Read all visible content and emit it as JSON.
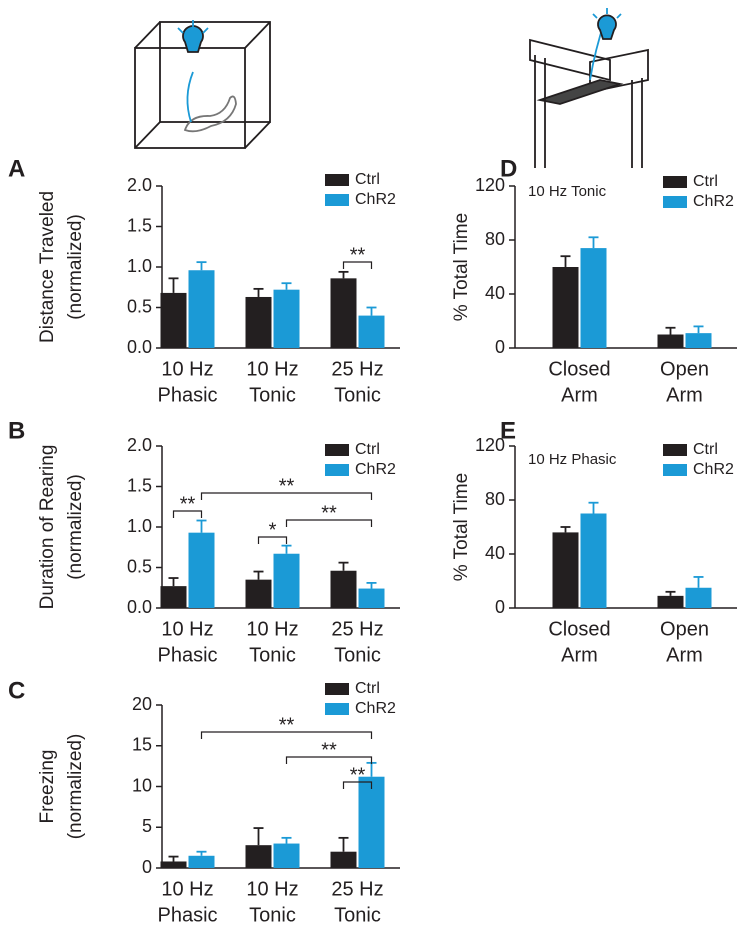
{
  "chart_data": [
    {
      "type": "bar",
      "panel": "A",
      "ylabel": [
        "Distance Traveled",
        "(normalized)"
      ],
      "categories": [
        [
          "10 Hz",
          "Phasic"
        ],
        [
          "10 Hz",
          "Tonic"
        ],
        [
          "25 Hz",
          "Tonic"
        ]
      ],
      "series": [
        {
          "name": "Ctrl",
          "color": "#231f20",
          "values": [
            0.68,
            0.63,
            0.86
          ],
          "errors": [
            0.18,
            0.1,
            0.08
          ]
        },
        {
          "name": "ChR2",
          "color": "#1b9ad6",
          "values": [
            0.96,
            0.72,
            0.4
          ],
          "errors": [
            0.1,
            0.08,
            0.1
          ]
        }
      ],
      "ylim": [
        0,
        2
      ],
      "yticks": [
        {
          "value": 0,
          "label": "0.0"
        },
        {
          "value": 0.5,
          "label": "0.5"
        },
        {
          "value": 1,
          "label": "1.0"
        },
        {
          "value": 1.5,
          "label": "1.5"
        },
        {
          "value": 2,
          "label": "2.0"
        }
      ],
      "significance": [
        "**"
      ]
    },
    {
      "type": "bar",
      "panel": "B",
      "ylabel": [
        "Duration of Rearing",
        "(normalized)"
      ],
      "categories": [
        [
          "10 Hz",
          "Phasic"
        ],
        [
          "10 Hz",
          "Tonic"
        ],
        [
          "25 Hz",
          "Tonic"
        ]
      ],
      "series": [
        {
          "name": "Ctrl",
          "color": "#231f20",
          "values": [
            0.27,
            0.35,
            0.46
          ],
          "errors": [
            0.1,
            0.1,
            0.1
          ]
        },
        {
          "name": "ChR2",
          "color": "#1b9ad6",
          "values": [
            0.93,
            0.67,
            0.24
          ],
          "errors": [
            0.15,
            0.1,
            0.07
          ]
        }
      ],
      "ylim": [
        0,
        2
      ],
      "yticks": [
        {
          "value": 0,
          "label": "0.0"
        },
        {
          "value": 0.5,
          "label": "0.5"
        },
        {
          "value": 1,
          "label": "1.0"
        },
        {
          "value": 1.5,
          "label": "1.5"
        },
        {
          "value": 2,
          "label": "2.0"
        }
      ],
      "significance": [
        "**",
        "**",
        "*",
        "**"
      ]
    },
    {
      "type": "bar",
      "panel": "C",
      "ylabel": [
        "Freezing",
        "(normalized)"
      ],
      "categories": [
        [
          "10 Hz",
          "Phasic"
        ],
        [
          "10 Hz",
          "Tonic"
        ],
        [
          "25 Hz",
          "Tonic"
        ]
      ],
      "series": [
        {
          "name": "Ctrl",
          "color": "#231f20",
          "values": [
            0.8,
            2.8,
            2.0
          ],
          "errors": [
            0.6,
            2.1,
            1.7
          ]
        },
        {
          "name": "ChR2",
          "color": "#1b9ad6",
          "values": [
            1.5,
            3.0,
            11.2
          ],
          "errors": [
            0.5,
            0.7,
            1.7
          ]
        }
      ],
      "ylim": [
        0,
        20
      ],
      "yticks": [
        0,
        5,
        10,
        15,
        20
      ],
      "significance": [
        "**",
        "**",
        "**"
      ]
    },
    {
      "type": "bar",
      "panel": "D",
      "ylabel": [
        "% Total Time"
      ],
      "annotation": "10 Hz Tonic",
      "categories": [
        [
          "Closed",
          "Arm"
        ],
        [
          "Open",
          "Arm"
        ]
      ],
      "series": [
        {
          "name": "Ctrl",
          "color": "#231f20",
          "values": [
            60,
            10
          ],
          "errors": [
            8,
            5
          ]
        },
        {
          "name": "ChR2",
          "color": "#1b9ad6",
          "values": [
            74,
            11
          ],
          "errors": [
            8,
            5
          ]
        }
      ],
      "ylim": [
        0,
        120
      ],
      "yticks": [
        0,
        40,
        80,
        120
      ],
      "significance": []
    },
    {
      "type": "bar",
      "panel": "E",
      "ylabel": [
        "% Total Time"
      ],
      "annotation": "10 Hz Phasic",
      "categories": [
        [
          "Closed",
          "Arm"
        ],
        [
          "Open",
          "Arm"
        ]
      ],
      "series": [
        {
          "name": "Ctrl",
          "color": "#231f20",
          "values": [
            56,
            9
          ],
          "errors": [
            4,
            3
          ]
        },
        {
          "name": "ChR2",
          "color": "#1b9ad6",
          "values": [
            70,
            15
          ],
          "errors": [
            8,
            8
          ]
        }
      ],
      "ylim": [
        0,
        120
      ],
      "yticks": [
        0,
        40,
        80,
        120
      ],
      "significance": []
    }
  ]
}
